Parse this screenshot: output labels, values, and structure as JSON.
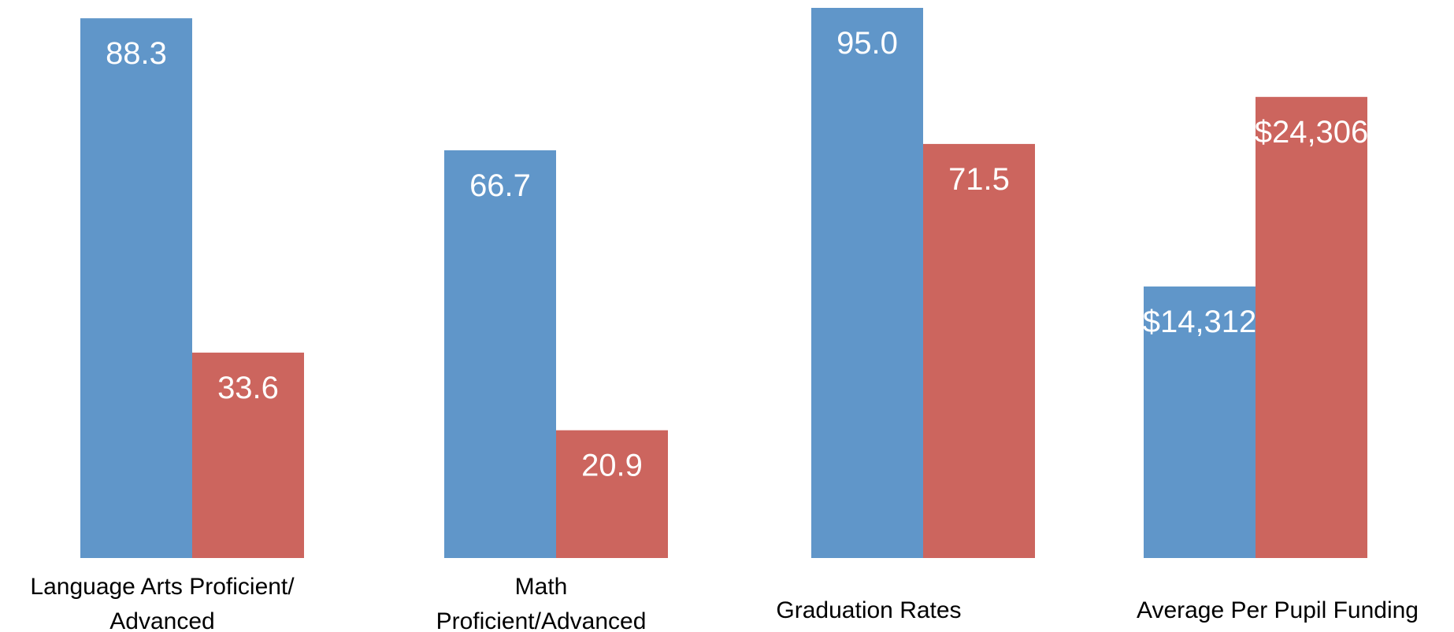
{
  "chart_data": [
    {
      "type": "bar",
      "category": "Language Arts Proficient/ Advanced",
      "category_lines": [
        "Language Arts Proficient/",
        "Advanced"
      ],
      "values": [
        88.3,
        33.6
      ],
      "labels": [
        "88.3",
        "33.6"
      ],
      "ylim": [
        0,
        90
      ]
    },
    {
      "type": "bar",
      "category": "Math Proficient/Advanced",
      "category_lines": [
        "Math",
        "Proficient/Advanced"
      ],
      "values": [
        66.7,
        20.9
      ],
      "labels": [
        "66.7",
        "20.9"
      ],
      "ylim": [
        0,
        90
      ]
    },
    {
      "type": "bar",
      "category": "Graduation Rates",
      "category_lines": [
        "Graduation Rates"
      ],
      "values": [
        95.0,
        71.5
      ],
      "labels": [
        "95.0",
        "71.5"
      ],
      "ylim": [
        0,
        95
      ]
    },
    {
      "type": "bar",
      "category": "Average Per Pupil Funding",
      "category_lines": [
        "Average Per Pupil Funding"
      ],
      "values": [
        14312,
        24306
      ],
      "labels": [
        "$14,312",
        "$24,306"
      ],
      "ylim": [
        0,
        29000
      ]
    }
  ],
  "colors": {
    "series_1": "#6096C9",
    "series_2": "#CC655E"
  }
}
